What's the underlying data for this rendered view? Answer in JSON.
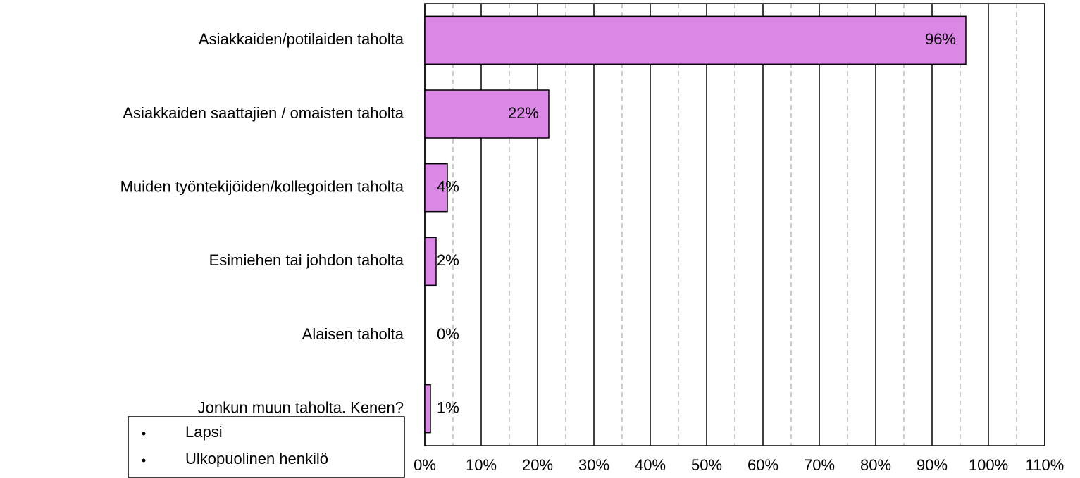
{
  "chart_data": {
    "type": "hbar",
    "categories": [
      "Asiakkaiden/potilaiden taholta",
      "Asiakkaiden saattajien / omaisten  taholta",
      "Muiden työntekijöiden/kollegoiden taholta",
      "Esimiehen tai johdon taholta",
      "Alaisen taholta",
      "Jonkun muun taholta. Kenen?"
    ],
    "values": [
      96,
      22,
      4,
      2,
      0,
      1
    ],
    "value_labels": [
      "96%",
      "22%",
      "4%",
      "2%",
      "0%",
      "1%"
    ],
    "color": "#da87e6",
    "xlim": [
      0,
      110
    ],
    "xticks": [
      {
        "value": 0,
        "label": "0%"
      },
      {
        "value": 10,
        "label": "10%"
      },
      {
        "value": 20,
        "label": "20%"
      },
      {
        "value": 30,
        "label": "30%"
      },
      {
        "value": 40,
        "label": "40%"
      },
      {
        "value": 50,
        "label": "50%"
      },
      {
        "value": 60,
        "label": "60%"
      },
      {
        "value": 70,
        "label": "70%"
      },
      {
        "value": 80,
        "label": "80%"
      },
      {
        "value": 90,
        "label": "90%"
      },
      {
        "value": 100,
        "label": "100%"
      },
      {
        "value": 110,
        "label": "110%"
      }
    ],
    "minor_xticks": [
      5,
      15,
      25,
      35,
      45,
      55,
      65,
      75,
      85,
      95,
      105
    ],
    "grid": true,
    "annotation": [
      "Lapsi",
      "Ulkopuolinen henkilö"
    ]
  }
}
